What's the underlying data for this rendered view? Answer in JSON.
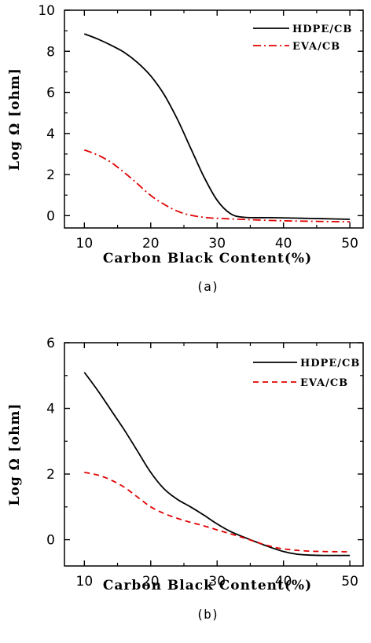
{
  "chart_data": [
    {
      "type": "line",
      "caption": "(a)",
      "xlabel": "Carbon Black Content(%)",
      "ylabel": "Log Ω [ohm]",
      "xlim": [
        7,
        52
      ],
      "ylim": [
        -0.6,
        10
      ],
      "xticks": [
        10,
        20,
        30,
        40,
        50
      ],
      "yticks": [
        0,
        2,
        4,
        6,
        8,
        10
      ],
      "grid": false,
      "legend_position": "top-right",
      "series": [
        {
          "name": "HDPE/CB",
          "color": "#000000",
          "style": "solid",
          "x": [
            10,
            12,
            14,
            16,
            18,
            20,
            22,
            24,
            26,
            28,
            30,
            32,
            34,
            38,
            42,
            46,
            50
          ],
          "y": [
            8.85,
            8.6,
            8.3,
            7.95,
            7.45,
            6.8,
            5.9,
            4.7,
            3.3,
            1.9,
            0.75,
            0.1,
            -0.08,
            -0.1,
            -0.12,
            -0.15,
            -0.18
          ]
        },
        {
          "name": "EVA/CB",
          "color": "#e00000",
          "style": "dash-dot",
          "x": [
            10,
            12,
            14,
            16,
            18,
            20,
            22,
            24,
            26,
            28,
            30,
            35,
            40,
            45,
            50
          ],
          "y": [
            3.2,
            2.95,
            2.6,
            2.1,
            1.55,
            0.98,
            0.55,
            0.22,
            0.02,
            -0.08,
            -0.13,
            -0.2,
            -0.25,
            -0.28,
            -0.3
          ]
        }
      ]
    },
    {
      "type": "line",
      "caption": "(b)",
      "xlabel": "Carbon Black Content(%)",
      "ylabel": "Log Ω [ohm]",
      "xlim": [
        7,
        52
      ],
      "ylim": [
        -0.8,
        6
      ],
      "xticks": [
        10,
        20,
        30,
        40,
        50
      ],
      "yticks": [
        0,
        2,
        4,
        6
      ],
      "grid": false,
      "legend_position": "top-right",
      "series": [
        {
          "name": "HDPE/CB",
          "color": "#000000",
          "style": "solid",
          "x": [
            10,
            12,
            14,
            16,
            18,
            20,
            22,
            24,
            26,
            28,
            30,
            32,
            34,
            36,
            38,
            40,
            42,
            44,
            46,
            50
          ],
          "y": [
            5.1,
            4.55,
            3.95,
            3.35,
            2.7,
            2.05,
            1.55,
            1.23,
            1.0,
            0.75,
            0.48,
            0.25,
            0.08,
            -0.08,
            -0.23,
            -0.36,
            -0.44,
            -0.47,
            -0.48,
            -0.48
          ]
        },
        {
          "name": "EVA/CB",
          "color": "#e00000",
          "style": "dashed",
          "x": [
            10,
            12,
            14,
            16,
            18,
            20,
            22,
            24,
            26,
            28,
            30,
            32,
            34,
            36,
            38,
            40,
            44,
            50
          ],
          "y": [
            2.05,
            1.97,
            1.82,
            1.6,
            1.3,
            1.0,
            0.8,
            0.65,
            0.53,
            0.42,
            0.3,
            0.18,
            0.06,
            -0.08,
            -0.2,
            -0.28,
            -0.35,
            -0.37
          ]
        }
      ]
    }
  ]
}
